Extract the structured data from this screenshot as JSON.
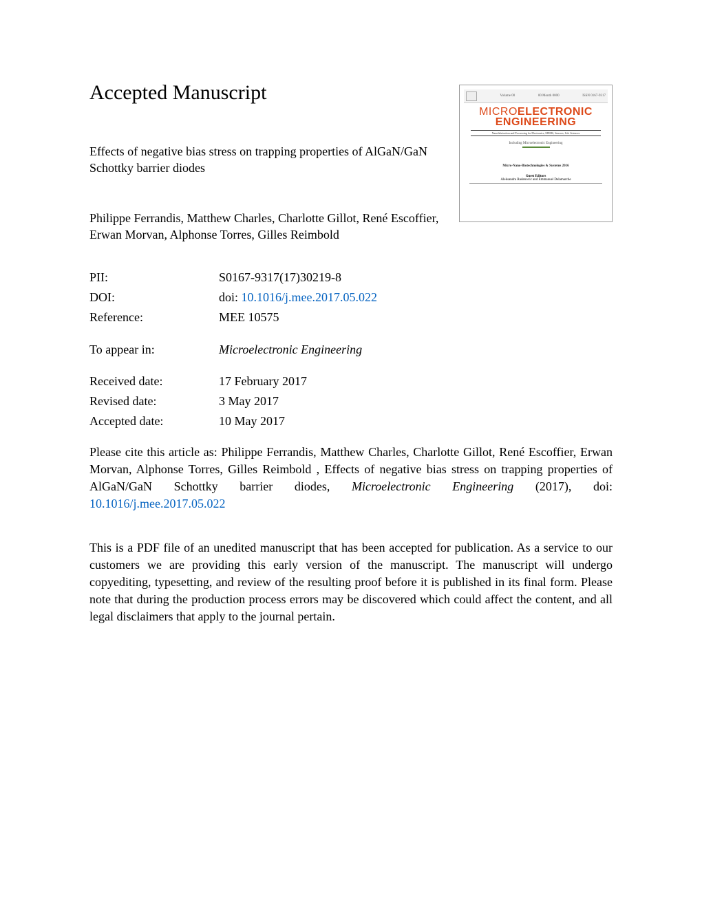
{
  "heading": "Accepted Manuscript",
  "title": "Effects of negative bias stress on trapping properties of AlGaN/GaN Schottky barrier diodes",
  "authors": "Philippe Ferrandis, Matthew Charles, Charlotte Gillot, René Escoffier, Erwan Morvan, Alphonse Torres, Gilles Reimbold",
  "meta": {
    "pii_label": "PII:",
    "pii_val": "S0167-9317(17)30219-8",
    "doi_label": "DOI:",
    "doi_prefix": "doi: ",
    "doi_link": "10.1016/j.mee.2017.05.022",
    "ref_label": "Reference:",
    "ref_val": "MEE 10575",
    "appear_label": "To appear in:",
    "appear_val": "Microelectronic Engineering",
    "received_label": "Received date:",
    "received_val": "17 February 2017",
    "revised_label": "Revised date:",
    "revised_val": "3 May 2017",
    "accepted_label": "Accepted date:",
    "accepted_val": "10 May 2017"
  },
  "citation_pre": "Please cite this article as: Philippe Ferrandis, Matthew Charles, Charlotte Gillot, René Escoffier, Erwan Morvan, Alphonse Torres, Gilles Reimbold , Effects of negative bias stress on trapping properties of AlGaN/GaN Schottky barrier diodes, ",
  "citation_journal": "Microelectronic Engineering",
  "citation_mid": " (2017), doi: ",
  "citation_link": "10.1016/j.mee.2017.05.022",
  "disclaimer": "This is a PDF file of an unedited manuscript that has been accepted for publication. As a service to our customers we are providing this early version of the manuscript. The manuscript will undergo copyediting, typesetting, and review of the resulting proof before it is published in its final form. Please note that during the production process errors may be discovered which could affect the content, and all legal disclaimers that apply to the journal pertain.",
  "cover": {
    "brand1": "MICRO",
    "brand1b": "ELECTRONIC",
    "brand2": "ENGINEERING",
    "sub": "Nanofabrication and Processing for Electronics, MEMS, Sensors, Life Sciences",
    "mid": "Including Microelectronic Engineering",
    "section": "Micro-Nano-Biotechnologies & Systems 2016",
    "editors_label": "Guest Editors",
    "editors": "Aleksandra Radenovic and Emmanuel Delamarche",
    "top_left": "Volume 00",
    "top_mid": "00 Month 0000",
    "top_right": "ISSN 0167-9317",
    "title_color": "#dd4a1a",
    "line_color": "#5a8a3a"
  },
  "colors": {
    "link": "#0563c1",
    "text": "#000000",
    "bg": "#ffffff"
  }
}
